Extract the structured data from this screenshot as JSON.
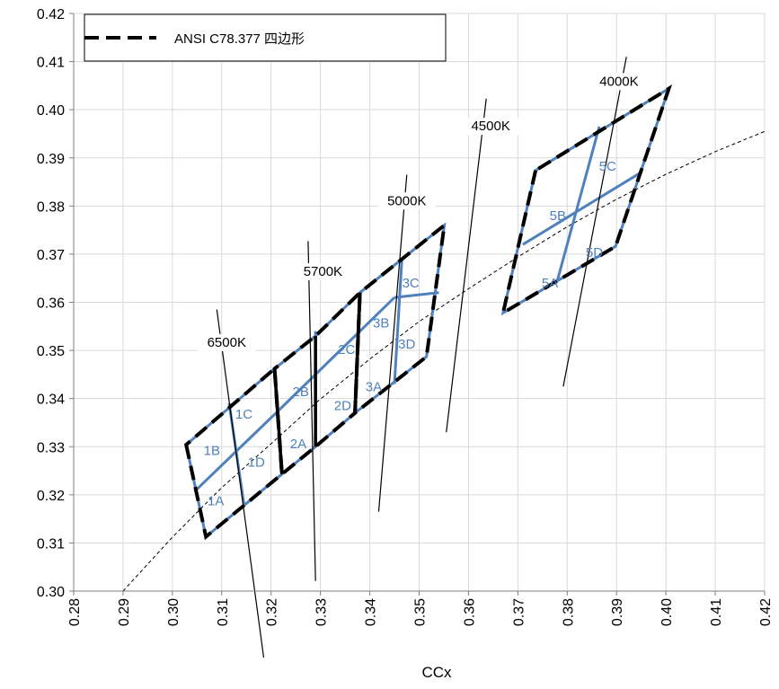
{
  "chart_data": {
    "type": "line",
    "title": "",
    "xlabel": "CCx",
    "ylabel": "",
    "xlim": [
      0.28,
      0.42
    ],
    "ylim": [
      0.3,
      0.42
    ],
    "x_ticks": [
      "0.28",
      "0.29",
      "0.30",
      "0.31",
      "0.32",
      "0.33",
      "0.34",
      "0.35",
      "0.36",
      "0.37",
      "0.38",
      "0.39",
      "0.40",
      "0.41",
      "0.42"
    ],
    "y_ticks": [
      "0.30",
      "0.31",
      "0.32",
      "0.33",
      "0.34",
      "0.35",
      "0.36",
      "0.37",
      "0.38",
      "0.39",
      "0.40",
      "0.41",
      "0.42"
    ],
    "grid": true,
    "legend": {
      "placement": "top-left",
      "entries": [
        {
          "name": "ANSI C78.377 四边形",
          "style": "thick black dashed"
        }
      ]
    },
    "colors": {
      "quadrangle": "#000000",
      "bin_lines": "#4f81bd",
      "grid": "#d9d9d9",
      "planckian": "#000000"
    },
    "quadrangles": [
      {
        "name": "6500K",
        "points": [
          [
            0.3028,
            0.3304
          ],
          [
            0.3068,
            0.3113
          ],
          [
            0.3221,
            0.3261
          ],
          [
            0.3205,
            0.3481
          ]
        ]
      },
      {
        "name": "5700K",
        "points": [
          [
            0.3207,
            0.3462
          ],
          [
            0.3222,
            0.3243
          ],
          [
            0.3376,
            0.3616
          ],
          [
            0.3366,
            0.3369
          ]
        ]
      },
      {
        "name": "5000K",
        "points": [
          [
            0.3376,
            0.3616
          ],
          [
            0.3366,
            0.3369
          ],
          [
            0.3515,
            0.3487
          ],
          [
            0.3551,
            0.376
          ]
        ]
      },
      {
        "name": "4000K",
        "points": [
          [
            0.3736,
            0.3874
          ],
          [
            0.367,
            0.3578
          ],
          [
            0.3898,
            0.3716
          ],
          [
            0.4006,
            0.4044
          ]
        ]
      }
    ],
    "quadrangle_outlines": [
      [
        [
          0.3028,
          0.3304
        ],
        [
          0.3068,
          0.3113
        ],
        [
          0.3222,
          0.3243
        ],
        [
          0.3207,
          0.3462
        ]
      ],
      [
        [
          0.3207,
          0.3462
        ],
        [
          0.3222,
          0.3243
        ],
        [
          0.329,
          0.33
        ],
        [
          0.337,
          0.337
        ],
        [
          0.338,
          0.362
        ],
        [
          0.329,
          0.353
        ]
      ],
      [
        [
          0.338,
          0.362
        ],
        [
          0.337,
          0.337
        ],
        [
          0.3515,
          0.3487
        ],
        [
          0.3551,
          0.376
        ]
      ],
      [
        [
          0.3736,
          0.3874
        ],
        [
          0.367,
          0.3578
        ],
        [
          0.3898,
          0.3716
        ],
        [
          0.4006,
          0.4044
        ]
      ]
    ],
    "bin_lines": [
      [
        [
          0.3045,
          0.3207
        ],
        [
          0.3213,
          0.3373
        ]
      ],
      [
        [
          0.3213,
          0.3373
        ],
        [
          0.345,
          0.361
        ]
      ],
      [
        [
          0.345,
          0.361
        ],
        [
          0.354,
          0.362
        ]
      ],
      [
        [
          0.3115,
          0.339
        ],
        [
          0.3145,
          0.318
        ]
      ],
      [
        [
          0.329,
          0.354
        ],
        [
          0.329,
          0.33
        ]
      ],
      [
        [
          0.3465,
          0.369
        ],
        [
          0.345,
          0.343
        ]
      ],
      [
        [
          0.371,
          0.372
        ],
        [
          0.395,
          0.387
        ]
      ],
      [
        [
          0.3865,
          0.3965
        ],
        [
          0.378,
          0.3645
        ]
      ]
    ],
    "bin_labels": [
      {
        "text": "1A",
        "x": 0.3088,
        "y": 0.3188
      },
      {
        "text": "1B",
        "x": 0.308,
        "y": 0.3292
      },
      {
        "text": "1C",
        "x": 0.3145,
        "y": 0.3368
      },
      {
        "text": "1D",
        "x": 0.317,
        "y": 0.3268
      },
      {
        "text": "2A",
        "x": 0.3255,
        "y": 0.3306
      },
      {
        "text": "2B",
        "x": 0.326,
        "y": 0.3414
      },
      {
        "text": "2C",
        "x": 0.3353,
        "y": 0.3502
      },
      {
        "text": "2D",
        "x": 0.3345,
        "y": 0.3385
      },
      {
        "text": "3A",
        "x": 0.3408,
        "y": 0.3425
      },
      {
        "text": "3B",
        "x": 0.3423,
        "y": 0.3557
      },
      {
        "text": "3C",
        "x": 0.3483,
        "y": 0.364
      },
      {
        "text": "3D",
        "x": 0.3475,
        "y": 0.3513
      },
      {
        "text": "5A",
        "x": 0.3765,
        "y": 0.364
      },
      {
        "text": "5B",
        "x": 0.3781,
        "y": 0.378
      },
      {
        "text": "5C",
        "x": 0.3882,
        "y": 0.3883
      },
      {
        "text": "5D",
        "x": 0.3855,
        "y": 0.3704
      }
    ],
    "cct_lines": [
      {
        "name": "6500K",
        "points": [
          [
            0.309,
            0.3585
          ],
          [
            0.3185,
            0.2862
          ]
        ],
        "label_x": 0.311,
        "label_y": 0.3508
      },
      {
        "name": "5700K",
        "points": [
          [
            0.3275,
            0.3727
          ],
          [
            0.329,
            0.3021
          ]
        ],
        "label_x": 0.3305,
        "label_y": 0.3655
      },
      {
        "name": "5000K",
        "points": [
          [
            0.3475,
            0.3865
          ],
          [
            0.3418,
            0.3165
          ]
        ],
        "label_x": 0.3475,
        "label_y": 0.3802
      },
      {
        "name": "4500K",
        "points": [
          [
            0.3636,
            0.4023
          ],
          [
            0.3555,
            0.333
          ]
        ],
        "label_x": 0.3645,
        "label_y": 0.3957
      },
      {
        "name": "4000K",
        "points": [
          [
            0.392,
            0.411
          ],
          [
            0.3792,
            0.3425
          ]
        ],
        "label_x": 0.3905,
        "label_y": 0.405
      }
    ],
    "planckian_locus": [
      [
        0.29,
        0.3
      ],
      [
        0.3,
        0.3112
      ],
      [
        0.31,
        0.3215
      ],
      [
        0.32,
        0.3306
      ],
      [
        0.33,
        0.3399
      ],
      [
        0.34,
        0.3482
      ],
      [
        0.35,
        0.356
      ],
      [
        0.36,
        0.3628
      ],
      [
        0.37,
        0.3694
      ],
      [
        0.38,
        0.3757
      ],
      [
        0.39,
        0.3814
      ],
      [
        0.4,
        0.3866
      ],
      [
        0.41,
        0.3913
      ],
      [
        0.42,
        0.3955
      ]
    ]
  }
}
